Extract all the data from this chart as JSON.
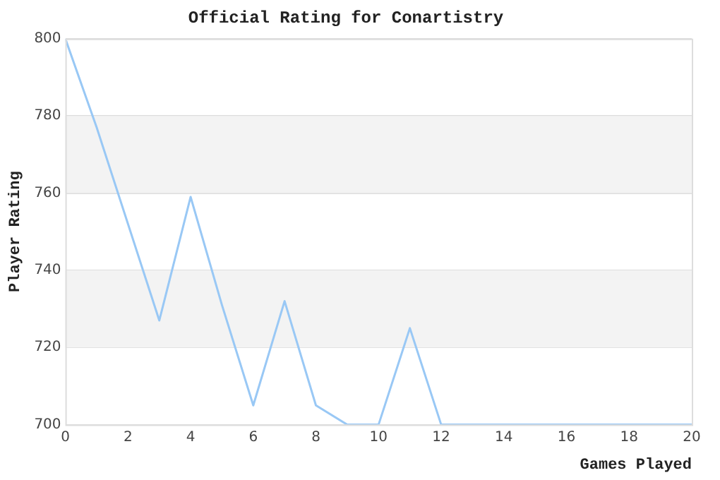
{
  "chart_data": {
    "type": "line",
    "title": "Official Rating for Conartistry",
    "xlabel": "Games Played",
    "ylabel": "Player Rating",
    "x": [
      0,
      1,
      2,
      3,
      4,
      5,
      6,
      7,
      8,
      9,
      10,
      11,
      12,
      13,
      14,
      15,
      16,
      17,
      18,
      19,
      20
    ],
    "series": [
      {
        "color": "#99c8f5",
        "values": [
          800,
          777,
          752,
          727,
          759,
          731,
          705,
          732,
          705,
          700,
          700,
          725,
          700,
          700,
          700,
          700,
          700,
          700,
          700,
          700,
          700
        ]
      }
    ],
    "xlim": [
      0,
      20
    ],
    "xticks": [
      0,
      2,
      4,
      6,
      8,
      10,
      12,
      14,
      16,
      18,
      20
    ],
    "ylim": [
      700,
      800
    ],
    "yticks": [
      700,
      720,
      740,
      760,
      780,
      800
    ],
    "grid": "y",
    "legend": false,
    "marker": "none",
    "line_style": "solid"
  }
}
